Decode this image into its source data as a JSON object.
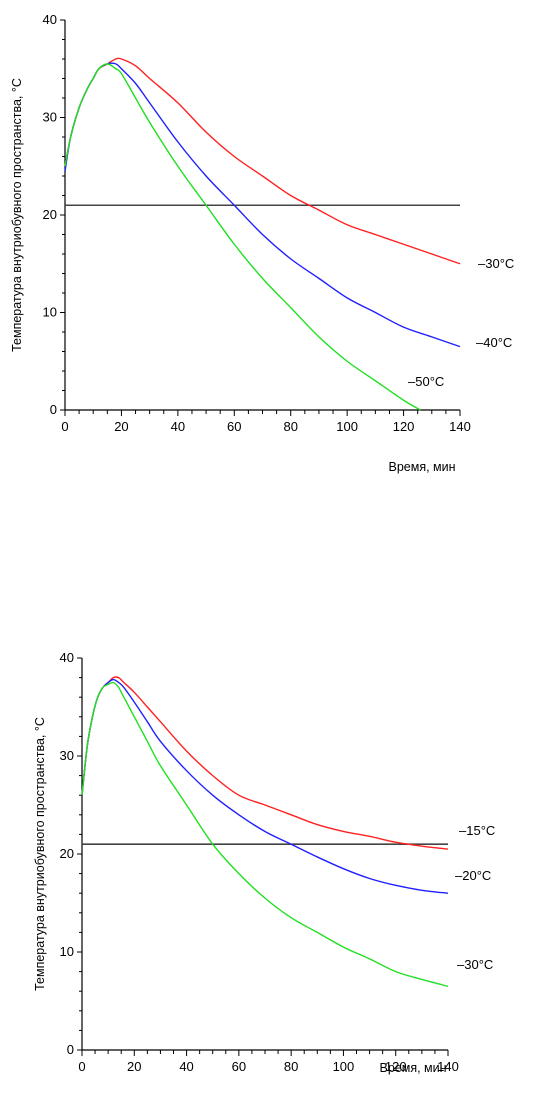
{
  "chart_data": [
    {
      "type": "line",
      "title": "",
      "xlabel": "Время, мин",
      "ylabel": "Температура внутриобувного пространства, °С",
      "xlim": [
        0,
        140
      ],
      "ylim": [
        0,
        40
      ],
      "xticks": [
        "0",
        "20",
        "40",
        "60",
        "80",
        "100",
        "120",
        "140"
      ],
      "yticks": [
        "0",
        "10",
        "20",
        "30",
        "40"
      ],
      "xticks_values": [
        0,
        20,
        40,
        60,
        80,
        100,
        120,
        140
      ],
      "yticks_values": [
        0,
        10,
        20,
        30,
        40
      ],
      "grid": false,
      "reference_line": {
        "y": 21,
        "color": "#444444"
      },
      "series": [
        {
          "name": "–30°С",
          "color": "#ff2020",
          "x": [
            0,
            2,
            5,
            8,
            10,
            12,
            15,
            18,
            20,
            25,
            30,
            40,
            50,
            60,
            70,
            80,
            90,
            100,
            110,
            120,
            130,
            140
          ],
          "y": [
            25,
            28,
            31,
            33,
            34,
            35,
            35.5,
            36,
            36,
            35.3,
            34,
            31.5,
            28.5,
            26,
            24,
            22,
            20.5,
            19,
            18,
            17,
            16,
            15
          ]
        },
        {
          "name": "–40°С",
          "color": "#2020ff",
          "x": [
            0,
            2,
            5,
            8,
            10,
            12,
            15,
            18,
            20,
            25,
            30,
            40,
            50,
            60,
            70,
            80,
            90,
            100,
            110,
            120,
            130,
            140
          ],
          "y": [
            24.5,
            28,
            31,
            33,
            34,
            35,
            35.5,
            35.5,
            35,
            33.5,
            31.5,
            27.5,
            24,
            21,
            18,
            15.5,
            13.5,
            11.5,
            10,
            8.5,
            7.5,
            6.5
          ]
        },
        {
          "name": "–50°С",
          "color": "#20e020",
          "x": [
            0,
            2,
            5,
            8,
            10,
            12,
            15,
            18,
            20,
            25,
            30,
            40,
            50,
            60,
            70,
            80,
            90,
            100,
            110,
            120,
            126
          ],
          "y": [
            25,
            28,
            31,
            33,
            34,
            35,
            35.5,
            35,
            34.5,
            32,
            29.5,
            25,
            21,
            17,
            13.5,
            10.5,
            7.5,
            5,
            3,
            1,
            0
          ]
        }
      ]
    },
    {
      "type": "line",
      "title": "",
      "xlabel": "Время, мин",
      "ylabel": "Температура внутриобувного пространства, °С",
      "xlim": [
        0,
        140
      ],
      "ylim": [
        0,
        40
      ],
      "xticks": [
        "0",
        "20",
        "40",
        "60",
        "80",
        "100",
        "120",
        "140"
      ],
      "yticks": [
        "0",
        "10",
        "20",
        "30",
        "40"
      ],
      "xticks_values": [
        0,
        20,
        40,
        60,
        80,
        100,
        120,
        140
      ],
      "yticks_values": [
        0,
        10,
        20,
        30,
        40
      ],
      "grid": false,
      "reference_line": {
        "y": 21,
        "color": "#444444"
      },
      "series": [
        {
          "name": "–15°С",
          "color": "#ff2020",
          "x": [
            0,
            2,
            4,
            6,
            8,
            10,
            12,
            14,
            16,
            20,
            25,
            30,
            40,
            50,
            60,
            70,
            80,
            90,
            100,
            110,
            120,
            130,
            140
          ],
          "y": [
            26,
            31,
            34,
            36,
            37,
            37.5,
            38,
            38,
            37.5,
            36.5,
            35,
            33.5,
            30.5,
            28,
            26,
            25,
            24,
            23,
            22.3,
            21.8,
            21.2,
            20.8,
            20.5
          ]
        },
        {
          "name": "–20°С",
          "color": "#2020ff",
          "x": [
            0,
            2,
            4,
            6,
            8,
            10,
            12,
            14,
            16,
            20,
            25,
            30,
            40,
            50,
            60,
            70,
            80,
            90,
            100,
            110,
            120,
            130,
            140
          ],
          "y": [
            26,
            31,
            34,
            36,
            37,
            37.5,
            37.8,
            37.5,
            37,
            35.5,
            33.5,
            31.5,
            28.5,
            26,
            24,
            22.3,
            21,
            19.7,
            18.5,
            17.5,
            16.8,
            16.3,
            16
          ]
        },
        {
          "name": "–30°С",
          "color": "#20e020",
          "x": [
            0,
            2,
            4,
            6,
            8,
            10,
            12,
            14,
            16,
            20,
            25,
            30,
            40,
            50,
            60,
            70,
            80,
            90,
            100,
            110,
            120,
            130,
            140
          ],
          "y": [
            26,
            31,
            34,
            36,
            37,
            37.3,
            37.5,
            37,
            36,
            34,
            31.5,
            29,
            25,
            21,
            18,
            15.5,
            13.5,
            12,
            10.5,
            9.3,
            8,
            7.2,
            6.5
          ]
        }
      ]
    }
  ]
}
